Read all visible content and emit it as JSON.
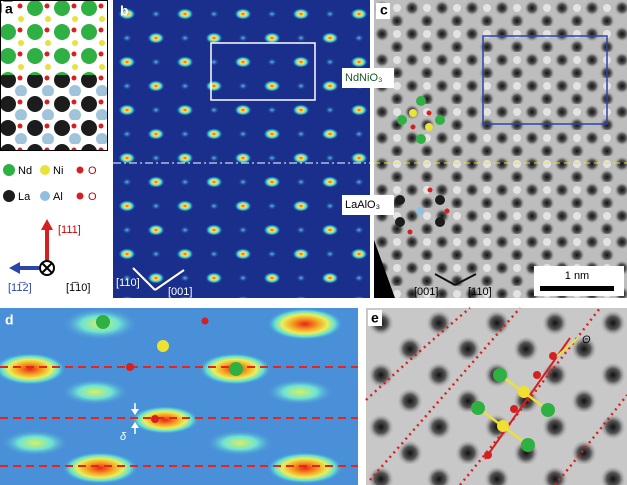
{
  "panel_a": {
    "label": "a",
    "legend": [
      "Nd",
      "Ni",
      "O",
      "La",
      "Al",
      "O"
    ],
    "axes": {
      "up": "[111]",
      "left": "[11̅2]",
      "into": "[1̅10]"
    }
  },
  "panel_b": {
    "label": "b",
    "film": "NdNiO₃",
    "directions": [
      "[110]",
      "[001]"
    ]
  },
  "panel_c": {
    "label": "c",
    "substrate": "LaAlO₃",
    "directions": [
      "[001]",
      "[110]"
    ],
    "scale_bar": "1 nm"
  },
  "panel_d": {
    "label": "d",
    "symbol": "δ"
  },
  "panel_e": {
    "label": "e",
    "symbol": "Θ"
  }
}
